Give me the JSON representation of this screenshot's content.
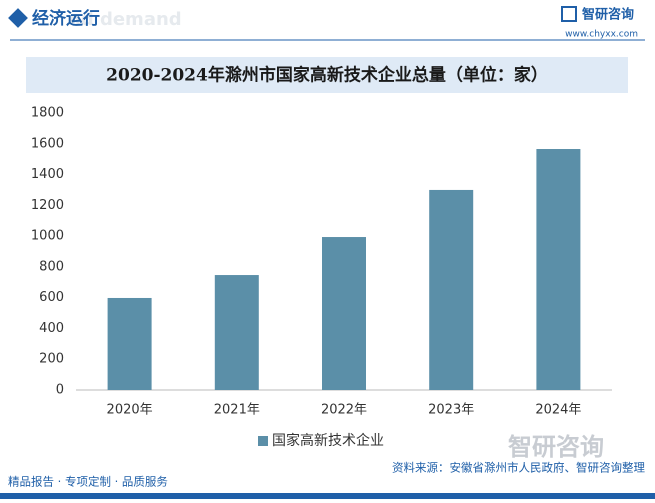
{
  "header": {
    "section": "经济运行",
    "watermark": "nd demand",
    "brand": "智研咨询",
    "url": "www.chyxx.com"
  },
  "chart_data": {
    "type": "bar",
    "title": "2020-2024年滁州市国家高新技术企业总量（单位：家）",
    "categories": [
      "2020年",
      "2021年",
      "2022年",
      "2023年",
      "2024年"
    ],
    "series": [
      {
        "name": "国家高新技术企业",
        "color": "#5b8fa8",
        "values": [
          598,
          747,
          994,
          1300,
          1566
        ]
      }
    ],
    "ylim": [
      0,
      1800
    ],
    "yticks": [
      0,
      200,
      400,
      600,
      800,
      1000,
      1200,
      1400,
      1600,
      1800
    ],
    "grid": false,
    "legend": "bottom"
  },
  "footer": {
    "slogan": "精品报告 · 专项定制 · 品质服务",
    "brand": "智研咨询",
    "source": "资料来源：安徽省滁州市人民政府、智研咨询整理"
  }
}
